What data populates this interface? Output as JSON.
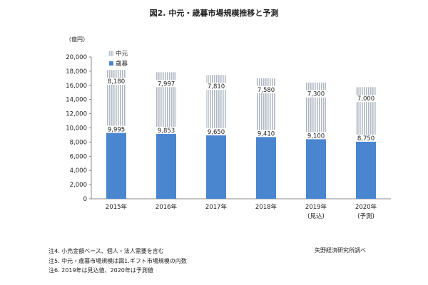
{
  "chart_data": {
    "type": "bar",
    "stacked": true,
    "title": "図2. 中元・歳暮市場規模推移と予測",
    "ylabel": "（億円）",
    "ylim": [
      0,
      20000
    ],
    "yticks": [
      0,
      2000,
      4000,
      6000,
      8000,
      10000,
      12000,
      14000,
      16000,
      18000,
      20000
    ],
    "ytick_labels": [
      "0",
      "2,000",
      "4,000",
      "6,000",
      "8,000",
      "10,000",
      "12,000",
      "14,000",
      "16,000",
      "18,000",
      "20,000"
    ],
    "categories": [
      "2015年",
      "2016年",
      "2017年",
      "2018年",
      "2019年",
      "2020年"
    ],
    "category_sublabels": [
      "",
      "",
      "",
      "",
      "(見込)",
      "(予測)"
    ],
    "series": [
      {
        "name": "歳暮",
        "values": [
          9995,
          9853,
          9650,
          9410,
          9100,
          8750
        ],
        "labels": [
          "9,995",
          "9,853",
          "9,650",
          "9,410",
          "9,100",
          "8,750"
        ],
        "color": "#4a86cf"
      },
      {
        "name": "中元",
        "values": [
          8180,
          7997,
          7810,
          7580,
          7300,
          7000
        ],
        "labels": [
          "8,180",
          "7,997",
          "7,810",
          "7,580",
          "7,300",
          "7,000"
        ],
        "color": "#b9c2cc",
        "pattern": "vertical-stripes"
      }
    ],
    "legend": "top-left",
    "grid": false
  },
  "notes": [
    "注4. 小売金額ベース、個人・法人需要を含む",
    "注5. 中元・歳暮市場規模は図1.ギフト市場規模の内数",
    "注6. 2019年は見込値、2020年は予測値"
  ],
  "source": "矢野経済研究所調べ"
}
